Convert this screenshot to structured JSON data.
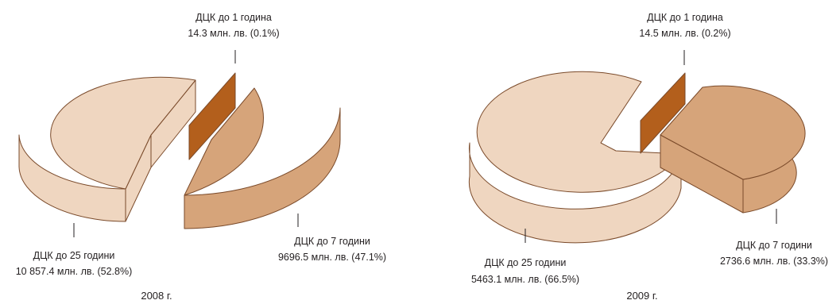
{
  "colors": {
    "long_top": "#efd6c0",
    "long_side": "#efd6c0",
    "mid_top": "#d6a47a",
    "mid_side": "#d6a47a",
    "short_top": "#b35f1c",
    "short_side": "#b35f1c",
    "edge": "#7a4a2a",
    "leader": "#231f20"
  },
  "chart_data": [
    {
      "type": "pie",
      "title": "2008 г.",
      "slices": [
        {
          "name": "ДЦК до 1 година",
          "value_text": "14.3 млн. лв. (0.1%)",
          "value": 14.3,
          "percent": 0.1
        },
        {
          "name": "ДЦК до 7 години",
          "value_text": "9696.5 млн. лв. (47.1%)",
          "value": 9696.5,
          "percent": 47.1
        },
        {
          "name": "ДЦК до 25 години",
          "value_text": "10 857.4 млн. лв. (52.8%)",
          "value": 10857.4,
          "percent": 52.8
        }
      ]
    },
    {
      "type": "pie",
      "title": "2009 г.",
      "slices": [
        {
          "name": "ДЦК до 1 година",
          "value_text": "14.5 млн. лв. (0.2%)",
          "value": 14.5,
          "percent": 0.2
        },
        {
          "name": "ДЦК до 7 години",
          "value_text": "2736.6 млн. лв. (33.3%)",
          "value": 2736.6,
          "percent": 33.3
        },
        {
          "name": "ДЦК до 25 години",
          "value_text": "5463.1 млн. лв. (66.5%)",
          "value": 5463.1,
          "percent": 66.5
        }
      ]
    }
  ]
}
